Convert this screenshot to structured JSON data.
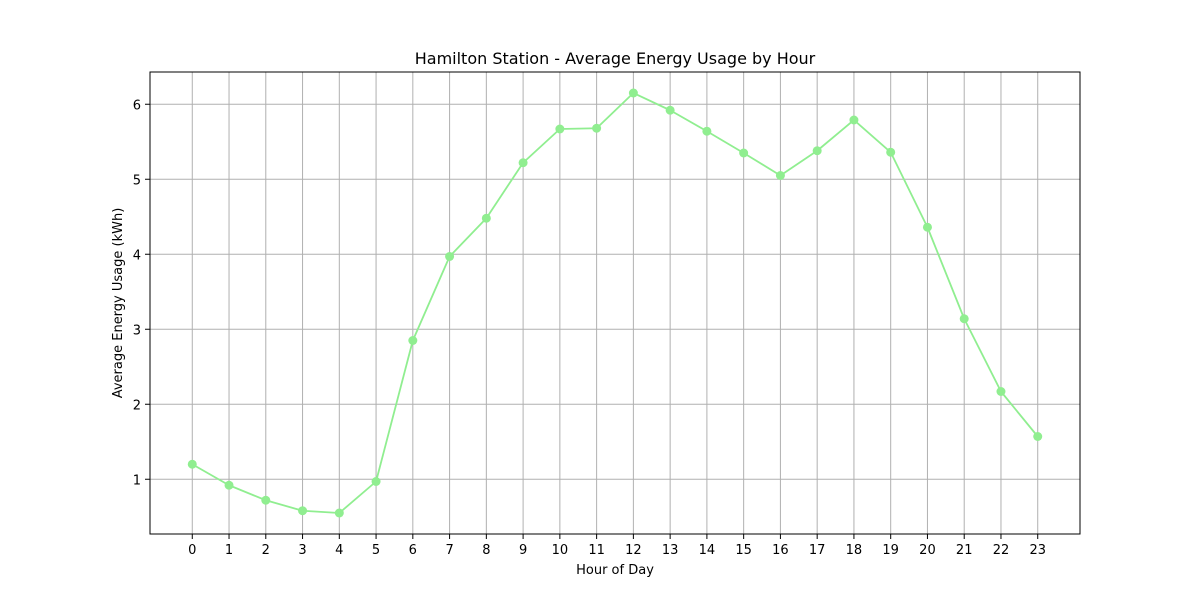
{
  "chart_data": {
    "type": "line",
    "title": "Hamilton Station - Average Energy Usage by Hour",
    "xlabel": "Hour of Day",
    "ylabel": "Average Energy Usage (kWh)",
    "x": [
      0,
      1,
      2,
      3,
      4,
      5,
      6,
      7,
      8,
      9,
      10,
      11,
      12,
      13,
      14,
      15,
      16,
      17,
      18,
      19,
      20,
      21,
      22,
      23
    ],
    "x_tick_labels": [
      "0",
      "1",
      "2",
      "3",
      "4",
      "5",
      "6",
      "7",
      "8",
      "9",
      "10",
      "11",
      "12",
      "13",
      "14",
      "15",
      "16",
      "17",
      "18",
      "19",
      "20",
      "21",
      "22",
      "23"
    ],
    "y_ticks": [
      1,
      2,
      3,
      4,
      5,
      6
    ],
    "y_tick_labels": [
      "1",
      "2",
      "3",
      "4",
      "5",
      "6"
    ],
    "series": [
      {
        "values": [
          1.2,
          0.92,
          0.72,
          0.58,
          0.55,
          0.97,
          2.85,
          3.97,
          4.48,
          5.22,
          5.67,
          5.68,
          6.15,
          5.92,
          5.64,
          5.35,
          5.05,
          5.38,
          5.79,
          5.36,
          4.36,
          3.14,
          2.17,
          1.57
        ],
        "color": "#90ee90",
        "marker": "circle"
      }
    ],
    "xlim": [
      -1.15,
      24.15
    ],
    "ylim": [
      0.27,
      6.43
    ],
    "grid": true,
    "grid_color": "#b0b0b0"
  }
}
